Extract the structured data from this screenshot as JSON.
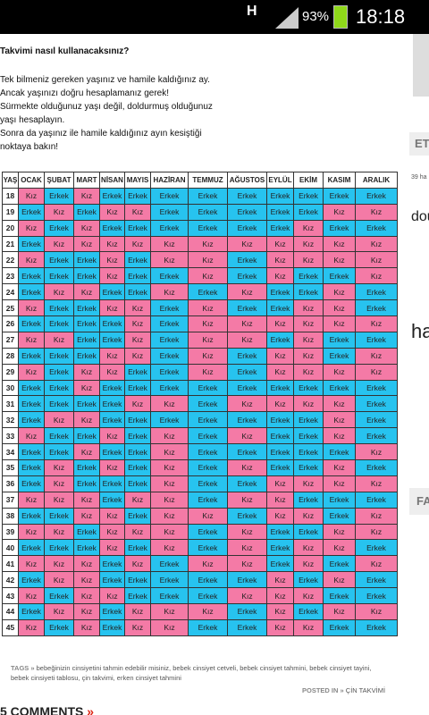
{
  "status_bar": {
    "battery": "93%",
    "time": "18:18",
    "network": "H"
  },
  "article": {
    "heading": "Takvimi nasıl kullanacaksınız?",
    "paragraphs": [
      "Tek bilmeniz gereken yaşınız ve hamile kaldığınız ay.",
      "Ancak yaşınızı doğru hesaplamanız gerek!",
      "Sürmekte olduğunuz yaşı değil, doldurmuş olduğunuz yaşı hesaplayın.",
      "Sonra da yaşınız ile hamile kaldığınız ayın kesiştiği noktaya bakın!"
    ]
  },
  "table": {
    "age_header": "YAŞ",
    "months": [
      "OCAK",
      "ŞUBAT",
      "MART",
      "NİSAN",
      "MAYIS",
      "HAZİRAN",
      "TEMMUZ",
      "AĞUSTOS",
      "EYLÜL",
      "EKİM",
      "KASIM",
      "ARALIK"
    ],
    "cell_colors": {
      "Kız": "#f47aa6",
      "Erkek": "#27c3ef"
    },
    "rows": [
      {
        "age": 18,
        "cells": [
          "Kız",
          "Erkek",
          "Kız",
          "Erkek",
          "Erkek",
          "Erkek",
          "Erkek",
          "Erkek",
          "Erkek",
          "Erkek",
          "Erkek",
          "Erkek"
        ]
      },
      {
        "age": 19,
        "cells": [
          "Erkek",
          "Kız",
          "Erkek",
          "Kız",
          "Kız",
          "Erkek",
          "Erkek",
          "Erkek",
          "Erkek",
          "Erkek",
          "Kız",
          "Kız"
        ]
      },
      {
        "age": 20,
        "cells": [
          "Kız",
          "Erkek",
          "Kız",
          "Erkek",
          "Erkek",
          "Erkek",
          "Erkek",
          "Erkek",
          "Erkek",
          "Kız",
          "Erkek",
          "Erkek"
        ]
      },
      {
        "age": 21,
        "cells": [
          "Erkek",
          "Kız",
          "Kız",
          "Kız",
          "Kız",
          "Kız",
          "Kız",
          "Kız",
          "Kız",
          "Kız",
          "Kız",
          "Kız"
        ]
      },
      {
        "age": 22,
        "cells": [
          "Kız",
          "Erkek",
          "Erkek",
          "Kız",
          "Erkek",
          "Kız",
          "Kız",
          "Erkek",
          "Kız",
          "Kız",
          "Kız",
          "Kız"
        ]
      },
      {
        "age": 23,
        "cells": [
          "Erkek",
          "Erkek",
          "Erkek",
          "Kız",
          "Erkek",
          "Erkek",
          "Kız",
          "Erkek",
          "Kız",
          "Erkek",
          "Erkek",
          "Kız"
        ]
      },
      {
        "age": 24,
        "cells": [
          "Erkek",
          "Kız",
          "Kız",
          "Erkek",
          "Erkek",
          "Kız",
          "Erkek",
          "Kız",
          "Erkek",
          "Erkek",
          "Kız",
          "Erkek"
        ]
      },
      {
        "age": 25,
        "cells": [
          "Kız",
          "Erkek",
          "Erkek",
          "Kız",
          "Kız",
          "Erkek",
          "Kız",
          "Erkek",
          "Erkek",
          "Kız",
          "Kız",
          "Erkek"
        ]
      },
      {
        "age": 26,
        "cells": [
          "Erkek",
          "Erkek",
          "Erkek",
          "Erkek",
          "Kız",
          "Erkek",
          "Kız",
          "Kız",
          "Kız",
          "Kız",
          "Kız",
          "Kız"
        ]
      },
      {
        "age": 27,
        "cells": [
          "Kız",
          "Kız",
          "Erkek",
          "Erkek",
          "Kız",
          "Erkek",
          "Kız",
          "Kız",
          "Erkek",
          "Kız",
          "Erkek",
          "Erkek"
        ]
      },
      {
        "age": 28,
        "cells": [
          "Erkek",
          "Erkek",
          "Erkek",
          "Kız",
          "Kız",
          "Erkek",
          "Kız",
          "Erkek",
          "Kız",
          "Kız",
          "Erkek",
          "Kız"
        ]
      },
      {
        "age": 29,
        "cells": [
          "Kız",
          "Erkek",
          "Kız",
          "Kız",
          "Erkek",
          "Erkek",
          "Kız",
          "Erkek",
          "Kız",
          "Kız",
          "Kız",
          "Kız"
        ]
      },
      {
        "age": 30,
        "cells": [
          "Erkek",
          "Erkek",
          "Kız",
          "Erkek",
          "Erkek",
          "Erkek",
          "Erkek",
          "Erkek",
          "Erkek",
          "Erkek",
          "Erkek",
          "Erkek"
        ]
      },
      {
        "age": 31,
        "cells": [
          "Erkek",
          "Erkek",
          "Erkek",
          "Erkek",
          "Kız",
          "Kız",
          "Erkek",
          "Kız",
          "Kız",
          "Kız",
          "Kız",
          "Erkek"
        ]
      },
      {
        "age": 32,
        "cells": [
          "Erkek",
          "Kız",
          "Kız",
          "Erkek",
          "Erkek",
          "Erkek",
          "Erkek",
          "Erkek",
          "Erkek",
          "Erkek",
          "Kız",
          "Erkek"
        ]
      },
      {
        "age": 33,
        "cells": [
          "Kız",
          "Erkek",
          "Erkek",
          "Kız",
          "Erkek",
          "Kız",
          "Erkek",
          "Kız",
          "Erkek",
          "Erkek",
          "Kız",
          "Erkek"
        ]
      },
      {
        "age": 34,
        "cells": [
          "Erkek",
          "Erkek",
          "Kız",
          "Erkek",
          "Erkek",
          "Kız",
          "Erkek",
          "Erkek",
          "Erkek",
          "Erkek",
          "Erkek",
          "Kız"
        ]
      },
      {
        "age": 35,
        "cells": [
          "Erkek",
          "Kız",
          "Erkek",
          "Kız",
          "Erkek",
          "Kız",
          "Erkek",
          "Kız",
          "Erkek",
          "Erkek",
          "Kız",
          "Erkek"
        ]
      },
      {
        "age": 36,
        "cells": [
          "Erkek",
          "Kız",
          "Erkek",
          "Erkek",
          "Erkek",
          "Kız",
          "Erkek",
          "Erkek",
          "Kız",
          "Kız",
          "Kız",
          "Kız"
        ]
      },
      {
        "age": 37,
        "cells": [
          "Kız",
          "Kız",
          "Kız",
          "Erkek",
          "Kız",
          "Kız",
          "Erkek",
          "Kız",
          "Kız",
          "Erkek",
          "Erkek",
          "Erkek"
        ]
      },
      {
        "age": 38,
        "cells": [
          "Erkek",
          "Erkek",
          "Kız",
          "Kız",
          "Erkek",
          "Kız",
          "Kız",
          "Erkek",
          "Kız",
          "Kız",
          "Erkek",
          "Kız"
        ]
      },
      {
        "age": 39,
        "cells": [
          "Kız",
          "Kız",
          "Erkek",
          "Kız",
          "Kız",
          "Kız",
          "Erkek",
          "Kız",
          "Erkek",
          "Erkek",
          "Kız",
          "Kız"
        ]
      },
      {
        "age": 40,
        "cells": [
          "Erkek",
          "Erkek",
          "Erkek",
          "Kız",
          "Erkek",
          "Kız",
          "Erkek",
          "Kız",
          "Erkek",
          "Kız",
          "Kız",
          "Erkek"
        ]
      },
      {
        "age": 41,
        "cells": [
          "Kız",
          "Kız",
          "Kız",
          "Erkek",
          "Kız",
          "Erkek",
          "Kız",
          "Kız",
          "Erkek",
          "Kız",
          "Erkek",
          "Kız"
        ]
      },
      {
        "age": 42,
        "cells": [
          "Erkek",
          "Kız",
          "Kız",
          "Erkek",
          "Erkek",
          "Erkek",
          "Erkek",
          "Erkek",
          "Kız",
          "Erkek",
          "Kız",
          "Erkek"
        ]
      },
      {
        "age": 43,
        "cells": [
          "Kız",
          "Erkek",
          "Kız",
          "Kız",
          "Erkek",
          "Erkek",
          "Erkek",
          "Kız",
          "Kız",
          "Kız",
          "Erkek",
          "Erkek"
        ]
      },
      {
        "age": 44,
        "cells": [
          "Erkek",
          "Kız",
          "Kız",
          "Erkek",
          "Kız",
          "Kız",
          "Kız",
          "Erkek",
          "Kız",
          "Erkek",
          "Kız",
          "Kız"
        ]
      },
      {
        "age": 45,
        "cells": [
          "Kız",
          "Erkek",
          "Kız",
          "Erkek",
          "Kız",
          "Kız",
          "Erkek",
          "Erkek",
          "Kız",
          "Kız",
          "Erkek",
          "Erkek"
        ]
      }
    ]
  },
  "footer": {
    "tags_label": "TAGS »",
    "tags": "bebeğinizin cinsiyetini tahmin edebilir misiniz, bebek cinsiyet cetveli, bebek cinsiyet tahmini, bebek cinsiyet tayini, bebek cinsiyeti tablosu, çin takvimi, erken cinsiyet tahmini",
    "posted_label": "POSTED IN »",
    "posted_in": "ÇİN TAKVİMİ",
    "comments": "5 COMMENTS",
    "comments_arrow": "»"
  },
  "sidebar": {
    "heading": "ET",
    "snippet": "39 ha",
    "big": "dou",
    "huge": "ha",
    "heading2": "FA"
  }
}
